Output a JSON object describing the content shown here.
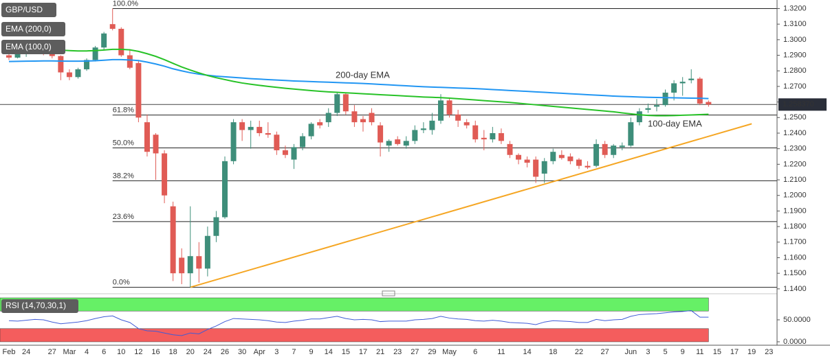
{
  "chart_data": {
    "type": "candlestick",
    "symbol": "GBP/USD",
    "up_color": "#3e8e7a",
    "down_color": "#e05b55",
    "categories": [
      "Feb",
      null,
      "24",
      null,
      null,
      "27",
      null,
      "Mar",
      null,
      "4",
      null,
      "6",
      null,
      "10",
      null,
      "12",
      null,
      "16",
      null,
      "18",
      null,
      "20",
      null,
      "24",
      null,
      "26",
      null,
      "30",
      null,
      "Apr",
      null,
      "3",
      null,
      "7",
      null,
      "9",
      null,
      "14",
      null,
      "15",
      null,
      "17",
      null,
      "21",
      null,
      "23",
      null,
      "27",
      null,
      "29",
      null,
      "May",
      null,
      null,
      "6",
      null,
      null,
      "11",
      null,
      null,
      "14",
      null,
      null,
      "18",
      null,
      null,
      "22",
      null,
      null,
      "27",
      null,
      null,
      "Jun",
      null,
      "3",
      null,
      "5",
      null,
      "9",
      null,
      "11",
      null,
      "15",
      null,
      "17",
      null,
      "19",
      null,
      "23"
    ],
    "open": [
      1.29,
      1.2885,
      1.291,
      1.2935,
      1.295,
      1.291,
      1.2895,
      1.279,
      1.276,
      1.281,
      1.287,
      1.295,
      1.31,
      1.307,
      1.29,
      1.285,
      1.247,
      1.239,
      1.227,
      1.193,
      1.16,
      1.15,
      1.161,
      1.153,
      1.174,
      1.186,
      1.222,
      1.247,
      1.242,
      1.244,
      1.24,
      1.239,
      1.229,
      1.223,
      1.231,
      1.238,
      1.247,
      1.247,
      1.253,
      1.265,
      1.254,
      1.249,
      1.253,
      1.245,
      1.232,
      1.236,
      1.232,
      1.235,
      1.242,
      1.242,
      1.248,
      1.261,
      1.252,
      1.247,
      1.245,
      1.237,
      1.236,
      1.24,
      1.233,
      1.226,
      1.223,
      1.223,
      1.214,
      1.222,
      1.226,
      1.225,
      1.223,
      1.219,
      1.219,
      1.233,
      1.226,
      1.231,
      1.232,
      1.247,
      1.255,
      1.257,
      1.258,
      1.266,
      1.272,
      1.274,
      1.275,
      1.26,
      null,
      null,
      null,
      null,
      null,
      null,
      null
    ],
    "high": [
      1.292,
      1.292,
      1.295,
      1.297,
      1.299,
      1.294,
      1.29,
      1.281,
      1.282,
      1.288,
      1.296,
      1.305,
      1.32,
      1.308,
      1.294,
      1.287,
      1.252,
      1.24,
      1.229,
      1.196,
      1.166,
      1.193,
      1.17,
      1.18,
      1.19,
      1.225,
      1.249,
      1.249,
      1.248,
      1.248,
      1.247,
      1.241,
      1.232,
      1.233,
      1.24,
      1.247,
      1.249,
      1.256,
      1.266,
      1.266,
      1.258,
      1.251,
      1.256,
      1.247,
      1.236,
      1.238,
      1.238,
      1.245,
      1.247,
      1.253,
      1.265,
      1.262,
      1.255,
      1.249,
      1.248,
      1.242,
      1.244,
      1.243,
      1.235,
      1.227,
      1.225,
      1.225,
      1.224,
      1.23,
      1.229,
      1.227,
      1.224,
      1.222,
      1.236,
      1.235,
      1.233,
      1.234,
      1.25,
      1.256,
      1.259,
      1.262,
      1.268,
      1.274,
      1.276,
      1.281,
      1.276,
      1.261,
      null,
      null,
      null,
      null,
      null,
      null,
      null
    ],
    "low": [
      1.287,
      1.288,
      1.289,
      1.292,
      1.29,
      1.288,
      1.274,
      1.274,
      1.275,
      1.28,
      1.286,
      1.293,
      1.306,
      1.289,
      1.281,
      1.247,
      1.225,
      1.21,
      1.195,
      1.145,
      1.143,
      1.141,
      1.144,
      1.148,
      1.17,
      1.185,
      1.22,
      1.235,
      1.23,
      1.238,
      1.237,
      1.226,
      1.224,
      1.217,
      1.229,
      1.236,
      1.243,
      1.244,
      1.251,
      1.252,
      1.244,
      1.241,
      1.245,
      1.225,
      1.228,
      1.232,
      1.23,
      1.233,
      1.24,
      1.239,
      1.246,
      1.25,
      1.244,
      1.243,
      1.234,
      1.229,
      1.234,
      1.233,
      1.224,
      1.22,
      1.218,
      1.208,
      1.208,
      1.22,
      1.223,
      1.22,
      1.217,
      1.217,
      1.218,
      1.224,
      1.224,
      1.229,
      1.231,
      1.245,
      1.253,
      1.254,
      1.257,
      1.261,
      1.264,
      1.272,
      1.258,
      1.257,
      null,
      null,
      null,
      null,
      null,
      null,
      null
    ],
    "close": [
      1.2885,
      1.291,
      1.2935,
      1.295,
      1.291,
      1.2895,
      1.279,
      1.276,
      1.281,
      1.287,
      1.295,
      1.304,
      1.307,
      1.29,
      1.282,
      1.25,
      1.228,
      1.227,
      1.2,
      1.15,
      1.15,
      1.161,
      1.153,
      1.174,
      1.186,
      1.222,
      1.247,
      1.242,
      1.244,
      1.24,
      1.239,
      1.229,
      1.226,
      1.231,
      1.238,
      1.246,
      1.245,
      1.253,
      1.265,
      1.254,
      1.247,
      1.247,
      1.247,
      1.234,
      1.235,
      1.233,
      1.235,
      1.242,
      1.243,
      1.248,
      1.261,
      1.252,
      1.248,
      1.245,
      1.236,
      1.236,
      1.24,
      1.235,
      1.226,
      1.223,
      1.221,
      1.212,
      1.222,
      1.228,
      1.224,
      1.222,
      1.219,
      1.218,
      1.233,
      1.226,
      1.232,
      1.232,
      1.247,
      1.254,
      1.256,
      1.258,
      1.266,
      1.272,
      1.273,
      1.275,
      1.259,
      1.25837,
      null,
      null,
      null,
      null,
      null,
      null,
      null
    ],
    "series": [
      {
        "name": "EMA (200,0)",
        "color": "#2196f3",
        "values": [
          1.286,
          1.2861,
          1.2862,
          1.2863,
          1.2864,
          1.2864,
          1.2863,
          1.2862,
          1.2862,
          1.2863,
          1.2865,
          1.2868,
          1.2872,
          1.2872,
          1.287,
          1.2866,
          1.2856,
          1.2844,
          1.283,
          1.2813,
          1.28,
          1.2788,
          1.2779,
          1.2772,
          1.2766,
          1.2762,
          1.2758,
          1.2754,
          1.275,
          1.2747,
          1.2744,
          1.2741,
          1.2738,
          1.2735,
          1.2733,
          1.2731,
          1.2729,
          1.2727,
          1.2725,
          1.2723,
          1.2721,
          1.2719,
          1.2716,
          1.2713,
          1.271,
          1.2707,
          1.2704,
          1.2701,
          1.2698,
          1.2696,
          1.2694,
          1.2692,
          1.269,
          1.2688,
          1.2686,
          1.2683,
          1.268,
          1.2677,
          1.2674,
          1.2671,
          1.2668,
          1.2665,
          1.2662,
          1.2659,
          1.2656,
          1.2653,
          1.265,
          1.2647,
          1.2644,
          1.2641,
          1.2638,
          1.2636,
          1.2634,
          1.2632,
          1.263,
          1.2629,
          1.2628,
          1.2627,
          1.2626,
          1.2625,
          1.2624,
          1.2622,
          null,
          null,
          null,
          null,
          null,
          null,
          null
        ]
      },
      {
        "name": "EMA (100,0)",
        "color": "#27c227",
        "values": [
          1.2928,
          1.293,
          1.2932,
          1.2934,
          1.2935,
          1.2935,
          1.2933,
          1.293,
          1.2928,
          1.2928,
          1.293,
          1.2934,
          1.2938,
          1.2938,
          1.2935,
          1.2925,
          1.291,
          1.2893,
          1.2872,
          1.2848,
          1.2825,
          1.2805,
          1.2787,
          1.277,
          1.2756,
          1.2744,
          1.2732,
          1.2722,
          1.2714,
          1.2707,
          1.27,
          1.2694,
          1.2688,
          1.2683,
          1.2678,
          1.2673,
          1.2669,
          1.2665,
          1.2662,
          1.2659,
          1.2656,
          1.2653,
          1.265,
          1.2647,
          1.2644,
          1.2641,
          1.2638,
          1.2635,
          1.2632,
          1.263,
          1.2628,
          1.2625,
          1.2621,
          1.2617,
          1.2613,
          1.2609,
          1.2605,
          1.2601,
          1.2597,
          1.2592,
          1.2587,
          1.2582,
          1.2577,
          1.2572,
          1.2567,
          1.2562,
          1.2557,
          1.2552,
          1.2547,
          1.2542,
          1.2537,
          1.253,
          1.2524,
          1.2518,
          1.2514,
          1.2512,
          1.2512,
          1.2513,
          1.2515,
          1.2517,
          1.2519,
          1.2521,
          null,
          null,
          null,
          null,
          null,
          null,
          null
        ]
      }
    ],
    "ylim": [
      1.1395,
      1.3255
    ],
    "yticks": [
      {
        "value": 1.32,
        "label": "1.3200"
      },
      {
        "value": 1.31,
        "label": "1.3100"
      },
      {
        "value": 1.3,
        "label": "1.3000"
      },
      {
        "value": 1.29,
        "label": "1.2900"
      },
      {
        "value": 1.28,
        "label": "1.2800"
      },
      {
        "value": 1.27,
        "label": "1.2700"
      },
      {
        "value": 1.26,
        "label": "1.2600"
      },
      {
        "value": 1.25,
        "label": "1.2500"
      },
      {
        "value": 1.24,
        "label": "1.2400"
      },
      {
        "value": 1.23,
        "label": "1.2300"
      },
      {
        "value": 1.22,
        "label": "1.2200"
      },
      {
        "value": 1.21,
        "label": "1.2100"
      },
      {
        "value": 1.2,
        "label": "1.2000"
      },
      {
        "value": 1.19,
        "label": "1.1900"
      },
      {
        "value": 1.18,
        "label": "1.1800"
      },
      {
        "value": 1.17,
        "label": "1.1700"
      },
      {
        "value": 1.16,
        "label": "1.1600"
      },
      {
        "value": 1.15,
        "label": "1.1500"
      },
      {
        "value": 1.14,
        "label": "1.1400"
      }
    ],
    "last_price": {
      "value": 1.25837,
      "label": "1.258370",
      "color": "#2a2e39"
    },
    "fib_levels": [
      {
        "value": 1.32,
        "label": "100.0%"
      },
      {
        "value": 1.2516,
        "label": "61.8%"
      },
      {
        "value": 1.2305,
        "label": "50.0%"
      },
      {
        "value": 1.2094,
        "label": "38.2%"
      },
      {
        "value": 1.1832,
        "label": "23.6%"
      },
      {
        "value": 1.141,
        "label": "0.0%"
      }
    ],
    "trendline": {
      "color": "#f5a623",
      "x": [
        21,
        86
      ],
      "values": [
        1.141,
        1.246
      ]
    },
    "annotations": [
      {
        "text": "200-day EMA",
        "color": "#2196f3"
      },
      {
        "text": "100-day EMA",
        "color": "#27c227"
      }
    ],
    "rsi": {
      "name": "RSI (14,70,30,1)",
      "color": "#3f5bd6",
      "values": [
        48,
        47,
        49,
        51,
        50,
        45,
        41,
        43,
        45,
        48,
        53,
        57,
        59,
        50,
        44,
        30,
        25,
        24,
        20,
        16,
        14,
        20,
        18,
        28,
        36,
        46,
        53,
        52,
        51,
        50,
        48,
        45,
        44,
        47,
        49,
        52,
        52,
        55,
        58,
        53,
        50,
        51,
        50,
        46,
        47,
        47,
        47,
        50,
        51,
        53,
        58,
        54,
        52,
        51,
        48,
        47,
        49,
        47,
        44,
        43,
        42,
        39,
        45,
        48,
        47,
        46,
        44,
        44,
        51,
        48,
        50,
        51,
        58,
        62,
        63,
        64,
        66,
        68,
        69,
        71,
        56,
        56,
        null,
        null,
        null,
        null,
        null,
        null,
        null
      ],
      "ylim": [
        0,
        100
      ],
      "yticks": [
        {
          "value": 50,
          "label": "50.0000"
        },
        {
          "value": 0,
          "label": "0.0000"
        }
      ],
      "bands": [
        {
          "range": [
            70,
            100
          ],
          "color": "#66f066"
        },
        {
          "range": [
            0,
            30
          ],
          "color": "#f45d5d"
        }
      ]
    }
  }
}
